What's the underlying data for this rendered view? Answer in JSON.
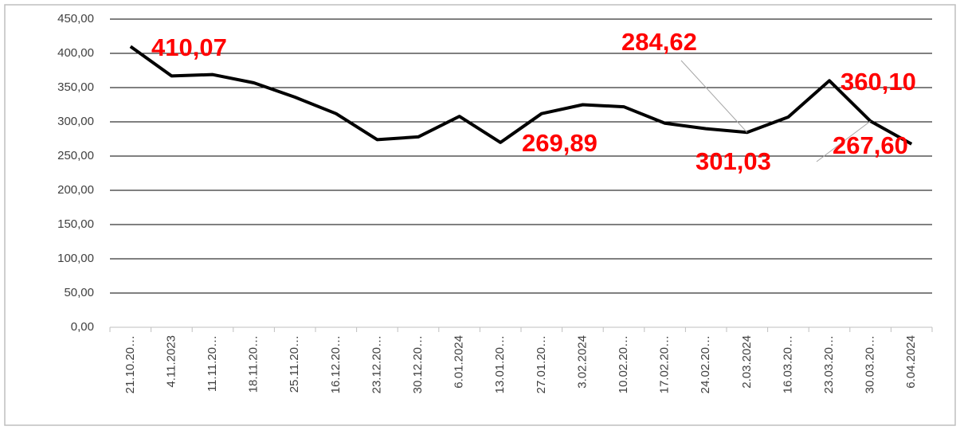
{
  "chart_data": {
    "type": "line",
    "categories": [
      "21.10.20…",
      "4.11.2023",
      "11.11.20…",
      "18.11.20…",
      "25.11.20…",
      "16.12.20…",
      "23.12.20…",
      "30.12.20…",
      "6.01.2024",
      "13.01.20…",
      "27.01.20…",
      "3.02.2024",
      "10.02.20…",
      "17.02.20…",
      "24.02.20…",
      "2.03.2024",
      "16.03.20…",
      "23.03.20…",
      "30.03.20…",
      "6.04.2024"
    ],
    "values": [
      410.07,
      367,
      369,
      357,
      336,
      312,
      274,
      278,
      308,
      269.89,
      312,
      325,
      322,
      298,
      290,
      284.62,
      307,
      360.1,
      301.03,
      267.6
    ],
    "value_labels": [
      "410,07",
      null,
      null,
      null,
      null,
      null,
      null,
      null,
      null,
      "269,89",
      null,
      null,
      null,
      null,
      null,
      "284,62",
      null,
      "360,10",
      "301,03",
      "267,60"
    ],
    "color": "#000000",
    "label_color": "#ff0000",
    "ylim": [
      0,
      450
    ],
    "yticks": [
      {
        "value": 0,
        "label": "0,00"
      },
      {
        "value": 50,
        "label": "50,00"
      },
      {
        "value": 100,
        "label": "100,00"
      },
      {
        "value": 150,
        "label": "150,00"
      },
      {
        "value": 200,
        "label": "200,00"
      },
      {
        "value": 250,
        "label": "250,00"
      },
      {
        "value": 300,
        "label": "300,00"
      },
      {
        "value": 350,
        "label": "350,00"
      },
      {
        "value": 400,
        "label": "400,00"
      },
      {
        "value": 450,
        "label": "450,00"
      }
    ],
    "grid": true
  }
}
